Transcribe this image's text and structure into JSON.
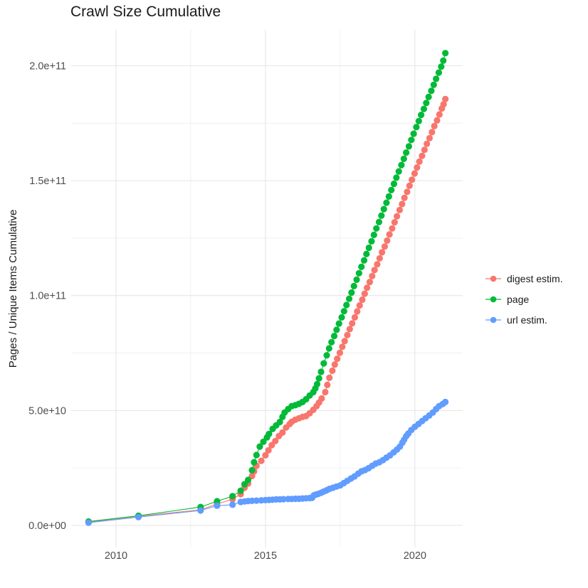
{
  "chart_data": {
    "type": "scatter",
    "title": "Crawl Size Cumulative",
    "xlabel": "",
    "ylabel": "Pages / Unique Items Cumulative",
    "legend_position": "right",
    "grid": "on",
    "background": "#ffffff",
    "xlim": [
      2008.5,
      2021.6
    ],
    "ylim_e9": [
      -9.6,
      215.6
    ],
    "x_ticks": {
      "labels": [
        "2010",
        "2015",
        "2020"
      ],
      "values": [
        2010,
        2015,
        2020
      ],
      "minor": [
        2012.5,
        2017.5
      ]
    },
    "y_ticks": {
      "labels": [
        "0.0e+00",
        "5.0e+10",
        "1.0e+11",
        "1.5e+11",
        "2.0e+11"
      ],
      "values_e9": [
        0,
        50,
        100,
        150,
        200
      ],
      "minor_e9": [
        25,
        75,
        125,
        175
      ]
    },
    "y_unit": "items (value × 1e9)",
    "x_unit": "year",
    "series": [
      {
        "name": "digest estim.",
        "color": "#F8766D",
        "points": [
          [
            2009.08,
            1.5
          ],
          [
            2010.75,
            4.0
          ],
          [
            2012.83,
            6.8
          ],
          [
            2013.38,
            9.3
          ],
          [
            2013.9,
            11.4
          ],
          [
            2014.17,
            13.6
          ],
          [
            2014.3,
            16.4
          ],
          [
            2014.42,
            18.2
          ],
          [
            2014.55,
            21.5
          ],
          [
            2014.62,
            23.5
          ],
          [
            2014.7,
            25.9
          ],
          [
            2014.86,
            28.1
          ],
          [
            2015.0,
            30.5
          ],
          [
            2015.1,
            32.7
          ],
          [
            2015.21,
            34.9
          ],
          [
            2015.33,
            36.7
          ],
          [
            2015.45,
            38.9
          ],
          [
            2015.57,
            40.4
          ],
          [
            2015.69,
            42.6
          ],
          [
            2015.81,
            44.1
          ],
          [
            2015.88,
            45.1
          ],
          [
            2016.0,
            46.0
          ],
          [
            2016.12,
            46.6
          ],
          [
            2016.24,
            47.2
          ],
          [
            2016.36,
            47.6
          ],
          [
            2016.48,
            48.8
          ],
          [
            2016.6,
            50.3
          ],
          [
            2016.71,
            51.9
          ],
          [
            2016.79,
            53.4
          ],
          [
            2016.88,
            55.2
          ],
          [
            2017.0,
            58.0
          ],
          [
            2017.07,
            61.1
          ],
          [
            2017.14,
            64.2
          ],
          [
            2017.24,
            67.3
          ],
          [
            2017.32,
            70.0
          ],
          [
            2017.4,
            72.5
          ],
          [
            2017.49,
            75.1
          ],
          [
            2017.57,
            77.7
          ],
          [
            2017.65,
            80.2
          ],
          [
            2017.74,
            82.8
          ],
          [
            2017.82,
            85.4
          ],
          [
            2017.9,
            87.9
          ],
          [
            2017.99,
            90.5
          ],
          [
            2018.07,
            93.1
          ],
          [
            2018.15,
            95.7
          ],
          [
            2018.24,
            98.2
          ],
          [
            2018.32,
            100.8
          ],
          [
            2018.4,
            103.4
          ],
          [
            2018.49,
            105.9
          ],
          [
            2018.57,
            108.5
          ],
          [
            2018.65,
            111.1
          ],
          [
            2018.74,
            113.6
          ],
          [
            2018.82,
            116.2
          ],
          [
            2018.9,
            118.8
          ],
          [
            2018.99,
            121.3
          ],
          [
            2019.07,
            123.9
          ],
          [
            2019.15,
            126.6
          ],
          [
            2019.24,
            129.2
          ],
          [
            2019.32,
            131.9
          ],
          [
            2019.4,
            134.5
          ],
          [
            2019.49,
            137.2
          ],
          [
            2019.57,
            139.8
          ],
          [
            2019.65,
            142.5
          ],
          [
            2019.74,
            145.1
          ],
          [
            2019.82,
            147.8
          ],
          [
            2019.9,
            150.4
          ],
          [
            2019.99,
            153.1
          ],
          [
            2020.07,
            155.7
          ],
          [
            2020.15,
            158.3
          ],
          [
            2020.24,
            160.8
          ],
          [
            2020.32,
            163.4
          ],
          [
            2020.4,
            166.0
          ],
          [
            2020.49,
            168.5
          ],
          [
            2020.57,
            171.1
          ],
          [
            2020.65,
            173.7
          ],
          [
            2020.74,
            176.2
          ],
          [
            2020.82,
            178.8
          ],
          [
            2020.9,
            181.4
          ],
          [
            2020.96,
            183.2
          ],
          [
            2021.02,
            185.5
          ]
        ]
      },
      {
        "name": "page",
        "color": "#00BA38",
        "points": [
          [
            2009.08,
            1.7
          ],
          [
            2010.75,
            4.2
          ],
          [
            2012.83,
            8.0
          ],
          [
            2013.38,
            10.5
          ],
          [
            2013.9,
            12.7
          ],
          [
            2014.17,
            15.1
          ],
          [
            2014.3,
            17.9
          ],
          [
            2014.42,
            19.8
          ],
          [
            2014.55,
            24.0
          ],
          [
            2014.62,
            27.5
          ],
          [
            2014.7,
            30.6
          ],
          [
            2014.81,
            34.3
          ],
          [
            2014.93,
            36.4
          ],
          [
            2015.05,
            38.3
          ],
          [
            2015.12,
            39.8
          ],
          [
            2015.24,
            42.0
          ],
          [
            2015.36,
            43.5
          ],
          [
            2015.48,
            45.0
          ],
          [
            2015.57,
            47.2
          ],
          [
            2015.64,
            49.1
          ],
          [
            2015.76,
            50.6
          ],
          [
            2015.88,
            51.9
          ],
          [
            2016.0,
            52.3
          ],
          [
            2016.12,
            52.9
          ],
          [
            2016.24,
            53.7
          ],
          [
            2016.36,
            54.9
          ],
          [
            2016.48,
            56.5
          ],
          [
            2016.6,
            58.0
          ],
          [
            2016.67,
            59.6
          ],
          [
            2016.73,
            61.5
          ],
          [
            2016.79,
            64.0
          ],
          [
            2016.86,
            66.8
          ],
          [
            2016.95,
            70.5
          ],
          [
            2017.05,
            74.0
          ],
          [
            2017.13,
            77.0
          ],
          [
            2017.21,
            79.7
          ],
          [
            2017.3,
            82.4
          ],
          [
            2017.38,
            85.1
          ],
          [
            2017.46,
            87.8
          ],
          [
            2017.55,
            90.5
          ],
          [
            2017.63,
            93.2
          ],
          [
            2017.71,
            95.9
          ],
          [
            2017.8,
            98.6
          ],
          [
            2017.88,
            101.3
          ],
          [
            2017.96,
            104.1
          ],
          [
            2018.05,
            106.9
          ],
          [
            2018.13,
            109.7
          ],
          [
            2018.21,
            112.5
          ],
          [
            2018.3,
            115.3
          ],
          [
            2018.38,
            118.1
          ],
          [
            2018.46,
            120.8
          ],
          [
            2018.55,
            123.6
          ],
          [
            2018.63,
            126.4
          ],
          [
            2018.71,
            129.2
          ],
          [
            2018.8,
            132.0
          ],
          [
            2018.88,
            134.8
          ],
          [
            2018.96,
            137.6
          ],
          [
            2019.05,
            140.4
          ],
          [
            2019.13,
            143.1
          ],
          [
            2019.21,
            145.9
          ],
          [
            2019.3,
            148.6
          ],
          [
            2019.38,
            151.3
          ],
          [
            2019.46,
            154.0
          ],
          [
            2019.55,
            156.8
          ],
          [
            2019.63,
            159.5
          ],
          [
            2019.71,
            162.2
          ],
          [
            2019.8,
            164.9
          ],
          [
            2019.88,
            167.7
          ],
          [
            2019.96,
            170.4
          ],
          [
            2020.05,
            173.3
          ],
          [
            2020.13,
            175.9
          ],
          [
            2020.21,
            178.6
          ],
          [
            2020.3,
            181.2
          ],
          [
            2020.38,
            183.8
          ],
          [
            2020.46,
            186.4
          ],
          [
            2020.55,
            189.1
          ],
          [
            2020.63,
            191.7
          ],
          [
            2020.71,
            194.3
          ],
          [
            2020.8,
            197.0
          ],
          [
            2020.88,
            199.6
          ],
          [
            2020.95,
            202.2
          ],
          [
            2021.02,
            205.5
          ]
        ]
      },
      {
        "name": "url estim.",
        "color": "#619CFF",
        "points": [
          [
            2009.08,
            1.2
          ],
          [
            2010.75,
            3.6
          ],
          [
            2012.83,
            6.5
          ],
          [
            2013.38,
            8.6
          ],
          [
            2013.9,
            9.0
          ],
          [
            2014.17,
            10.2
          ],
          [
            2014.3,
            10.4
          ],
          [
            2014.42,
            10.6
          ],
          [
            2014.55,
            10.7
          ],
          [
            2014.7,
            10.8
          ],
          [
            2014.86,
            10.9
          ],
          [
            2015.0,
            11.0
          ],
          [
            2015.12,
            11.1
          ],
          [
            2015.24,
            11.2
          ],
          [
            2015.36,
            11.3
          ],
          [
            2015.48,
            11.3
          ],
          [
            2015.6,
            11.4
          ],
          [
            2015.76,
            11.5
          ],
          [
            2015.88,
            11.5
          ],
          [
            2016.0,
            11.6
          ],
          [
            2016.12,
            11.6
          ],
          [
            2016.24,
            11.7
          ],
          [
            2016.36,
            11.8
          ],
          [
            2016.48,
            11.9
          ],
          [
            2016.56,
            12.0
          ],
          [
            2016.62,
            13.1
          ],
          [
            2016.69,
            13.4
          ],
          [
            2016.76,
            13.7
          ],
          [
            2016.86,
            14.2
          ],
          [
            2016.95,
            14.7
          ],
          [
            2017.05,
            15.3
          ],
          [
            2017.14,
            15.9
          ],
          [
            2017.26,
            16.4
          ],
          [
            2017.38,
            16.9
          ],
          [
            2017.5,
            17.4
          ],
          [
            2017.62,
            18.4
          ],
          [
            2017.74,
            19.4
          ],
          [
            2017.86,
            20.4
          ],
          [
            2017.98,
            21.3
          ],
          [
            2018.1,
            22.5
          ],
          [
            2018.21,
            23.5
          ],
          [
            2018.33,
            24.1
          ],
          [
            2018.45,
            24.9
          ],
          [
            2018.57,
            25.9
          ],
          [
            2018.69,
            26.9
          ],
          [
            2018.81,
            27.5
          ],
          [
            2018.93,
            28.4
          ],
          [
            2019.05,
            29.5
          ],
          [
            2019.17,
            30.5
          ],
          [
            2019.29,
            31.8
          ],
          [
            2019.4,
            33.0
          ],
          [
            2019.5,
            34.3
          ],
          [
            2019.58,
            36.0
          ],
          [
            2019.64,
            37.3
          ],
          [
            2019.71,
            38.8
          ],
          [
            2019.78,
            40.0
          ],
          [
            2019.88,
            41.5
          ],
          [
            2020.0,
            42.9
          ],
          [
            2020.12,
            44.1
          ],
          [
            2020.24,
            45.4
          ],
          [
            2020.36,
            46.6
          ],
          [
            2020.48,
            47.8
          ],
          [
            2020.6,
            49.1
          ],
          [
            2020.71,
            50.6
          ],
          [
            2020.81,
            51.9
          ],
          [
            2020.93,
            52.8
          ],
          [
            2021.02,
            53.7
          ]
        ]
      }
    ]
  },
  "style": {
    "grid_major_color": "#e4e4e4",
    "grid_minor_color": "#f0f0f0",
    "tick_label_color": "#4d4d4d",
    "text_color": "#1a1a1a"
  }
}
